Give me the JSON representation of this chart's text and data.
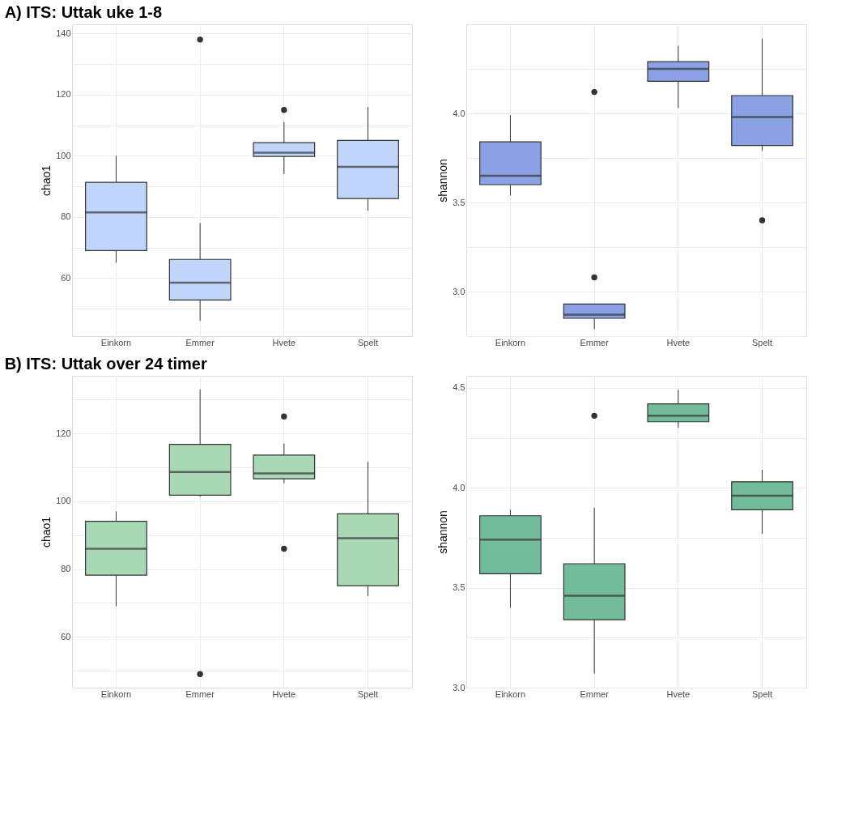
{
  "chart_data": [
    {
      "type": "box",
      "title": "A)   ITS: Uttak uke 1-8",
      "ylabel": "chao1",
      "categories": [
        "Einkorn",
        "Emmer",
        "Hvete",
        "Spelt"
      ],
      "ylim": [
        41,
        143
      ],
      "yticks": [
        {
          "value": 50,
          "label": null
        },
        60,
        {
          "value": 70,
          "label": null
        },
        80,
        {
          "value": 90,
          "label": null
        },
        100,
        {
          "value": 110,
          "label": null
        },
        120,
        {
          "value": 130,
          "label": null
        },
        140
      ],
      "grid": true,
      "series": [
        {
          "color": "#c1d5fb",
          "boxes": [
            {
              "low": 65,
              "q1": 69,
              "median": 81.5,
              "q3": 91.3,
              "high": 100
            },
            {
              "low": 46,
              "q1": 52.8,
              "median": 58.5,
              "q3": 66.1,
              "high": 78,
              "outliers": [
                138
              ]
            },
            {
              "low": 94,
              "q1": 99.8,
              "median": 101,
              "q3": 104.3,
              "high": 111,
              "outliers": [
                115
              ]
            },
            {
              "low": 82,
              "q1": 86,
              "median": 96.4,
              "q3": 105,
              "high": 116
            }
          ]
        }
      ]
    },
    {
      "type": "box",
      "ylabel": "shannon",
      "categories": [
        "Einkorn",
        "Emmer",
        "Hvete",
        "Spelt"
      ],
      "ylim": [
        2.75,
        4.5
      ],
      "yticks": [
        {
          "value": 2.75,
          "label": null
        },
        {
          "value": 3.0,
          "label": "3.0"
        },
        {
          "value": 3.25,
          "label": null
        },
        3.5,
        {
          "value": 3.75,
          "label": null
        },
        {
          "value": 4.0,
          "label": "4.0"
        },
        {
          "value": 4.25,
          "label": null
        }
      ],
      "grid": true,
      "series": [
        {
          "color": "#8aa1e3",
          "boxes": [
            {
              "low": 3.54,
              "q1": 3.6,
              "median": 3.65,
              "q3": 3.84,
              "high": 3.99
            },
            {
              "low": 2.79,
              "q1": 2.85,
              "median": 2.87,
              "q3": 2.93,
              "high": 2.93,
              "outliers": [
                4.12,
                3.08
              ]
            },
            {
              "low": 4.03,
              "q1": 4.18,
              "median": 4.25,
              "q3": 4.29,
              "high": 4.38
            },
            {
              "low": 3.79,
              "q1": 3.82,
              "median": 3.98,
              "q3": 4.1,
              "high": 4.42,
              "outliers": [
                3.4
              ]
            }
          ]
        }
      ]
    },
    {
      "type": "box",
      "title": "B)   ITS: Uttak over 24 timer",
      "ylabel": "chao1",
      "categories": [
        "Einkorn",
        "Emmer",
        "Hvete",
        "Spelt"
      ],
      "ylim": [
        45,
        137
      ],
      "yticks": [
        {
          "value": 50,
          "label": null
        },
        60,
        {
          "value": 70,
          "label": null
        },
        80,
        {
          "value": 90,
          "label": null
        },
        100,
        {
          "value": 110,
          "label": null
        },
        120,
        {
          "value": 130,
          "label": null
        }
      ],
      "grid": true,
      "series": [
        {
          "color": "#a9d8b5",
          "boxes": [
            {
              "low": 69,
              "q1": 78.2,
              "median": 86,
              "q3": 94.1,
              "high": 97
            },
            {
              "low": 101.3,
              "q1": 101.8,
              "median": 108.6,
              "q3": 116.8,
              "high": 133,
              "outliers": [
                49
              ]
            },
            {
              "low": 105.3,
              "q1": 106.6,
              "median": 108.2,
              "q3": 113.6,
              "high": 117,
              "outliers": [
                125,
                86
              ]
            },
            {
              "low": 72,
              "q1": 75.1,
              "median": 89.1,
              "q3": 96.3,
              "high": 111.6
            }
          ]
        }
      ]
    },
    {
      "type": "box",
      "ylabel": "shannon",
      "categories": [
        "Einkorn",
        "Emmer",
        "Hvete",
        "Spelt"
      ],
      "ylim": [
        3.0,
        4.56
      ],
      "yticks": [
        {
          "value": 3.0,
          "label": "3.0"
        },
        {
          "value": 3.25,
          "label": null
        },
        3.5,
        {
          "value": 3.75,
          "label": null
        },
        {
          "value": 4.0,
          "label": "4.0"
        },
        {
          "value": 4.25,
          "label": null
        },
        4.5
      ],
      "grid": true,
      "series": [
        {
          "color": "#72bc9c",
          "boxes": [
            {
              "low": 3.4,
              "q1": 3.57,
              "median": 3.74,
              "q3": 3.86,
              "high": 3.89
            },
            {
              "low": 3.07,
              "q1": 3.34,
              "median": 3.46,
              "q3": 3.62,
              "high": 3.9,
              "outliers": [
                4.36
              ]
            },
            {
              "low": 4.3,
              "q1": 4.33,
              "median": 4.36,
              "q3": 4.42,
              "high": 4.49
            },
            {
              "low": 3.77,
              "q1": 3.89,
              "median": 3.96,
              "q3": 4.03,
              "high": 4.09
            }
          ]
        }
      ]
    }
  ]
}
